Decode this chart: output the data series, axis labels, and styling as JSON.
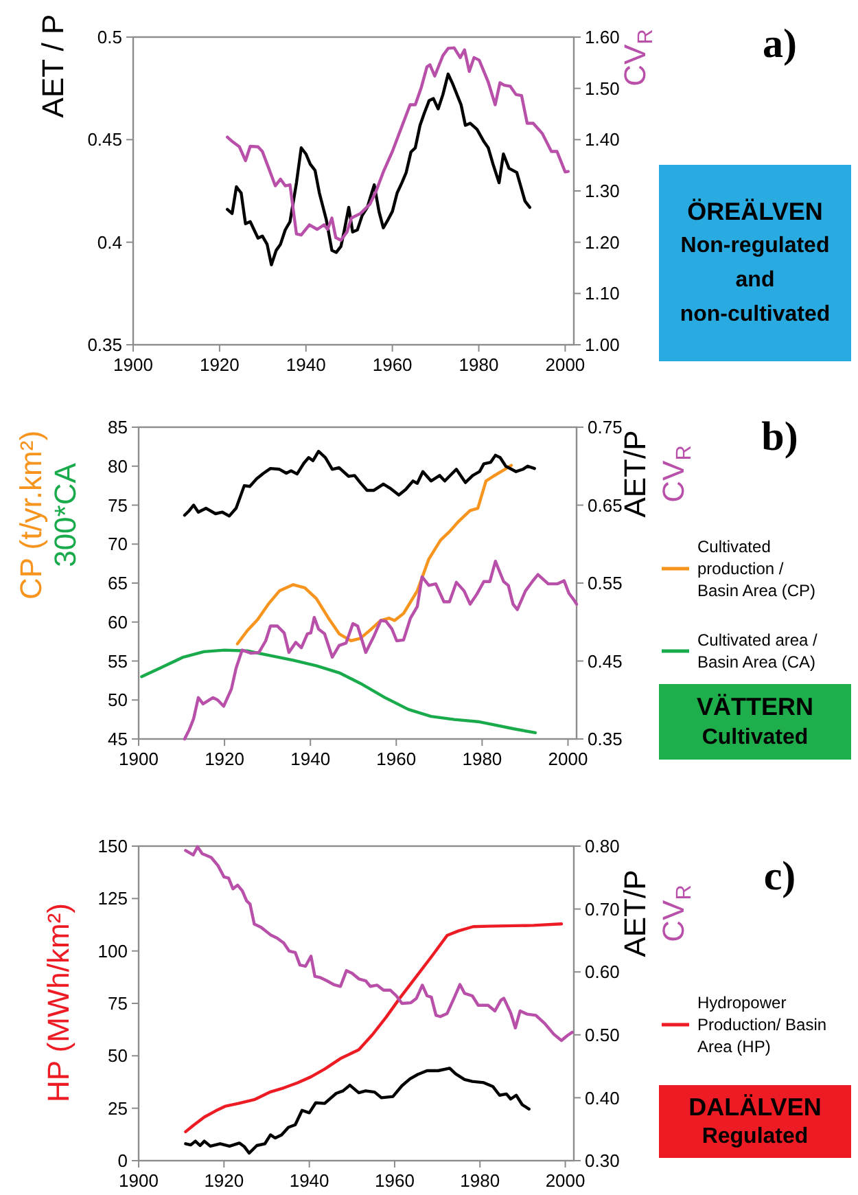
{
  "chart_data": [
    {
      "type": "line",
      "ylabel": "AET / P",
      "y2label": "CV$_{R}$",
      "xlim": [
        1900,
        2002
      ],
      "xticks": [
        1900,
        1920,
        1940,
        1960,
        1980,
        2000
      ],
      "ylim": [
        0.35,
        0.5
      ],
      "yticks": [
        0.35,
        0.4,
        0.45,
        0.5
      ],
      "y2lim": [
        1.0,
        1.6
      ],
      "y2ticks": [
        {
          "value": 1.0,
          "label": "1.00"
        },
        {
          "value": 1.1,
          "label": "1.10"
        },
        {
          "value": 1.2,
          "label": "1.20"
        },
        {
          "value": 1.3,
          "label": "1.30"
        },
        {
          "value": 1.4,
          "label": "1.40"
        },
        {
          "value": 1.5,
          "label": "1.50"
        },
        {
          "value": 1.6,
          "label": "1.60"
        }
      ],
      "series": [
        {
          "color": "#000000",
          "x": [
            1921.8,
            1922.9,
            1923.9,
            1925,
            1926,
            1927.1,
            1928.9,
            1929.9,
            1931,
            1932,
            1933.1,
            1934.1,
            1935.2,
            1936.3,
            1937.8,
            1938.9,
            1940,
            1941,
            1942.1,
            1943.1,
            1944.7,
            1946,
            1947,
            1948.1,
            1948.9,
            1949.9,
            1950.8,
            1951.9,
            1953,
            1954.2,
            1955.8,
            1956.9,
            1957.9,
            1959,
            1960,
            1961.1,
            1962.2,
            1963.2,
            1964.3,
            1965.3,
            1966.4,
            1967.4,
            1968.5,
            1969.5,
            1970.6,
            1971.7,
            1972.9,
            1974,
            1975.9,
            1976.9,
            1978,
            1979.6,
            1981.2,
            1982.2,
            1983.3,
            1984.7,
            1985.7,
            1987,
            1988.8,
            1990.7,
            1991.8
          ],
          "values": [
            0.416,
            0.414,
            0.427,
            0.424,
            0.409,
            0.41,
            0.402,
            0.403,
            0.399,
            0.389,
            0.396,
            0.399,
            0.406,
            0.41,
            0.429,
            0.446,
            0.443,
            0.438,
            0.435,
            0.424,
            0.411,
            0.396,
            0.395,
            0.398,
            0.406,
            0.417,
            0.405,
            0.406,
            0.413,
            0.417,
            0.428,
            0.415,
            0.407,
            0.411,
            0.415,
            0.424,
            0.429,
            0.434,
            0.444,
            0.446,
            0.457,
            0.463,
            0.469,
            0.47,
            0.465,
            0.472,
            0.482,
            0.477,
            0.467,
            0.457,
            0.458,
            0.455,
            0.449,
            0.446,
            0.438,
            0.429,
            0.443,
            0.436,
            0.434,
            0.42,
            0.417
          ]
        },
        {
          "color": "#b84fa8",
          "axis": "y2",
          "x": [
            1921.8,
            1923,
            1924.6,
            1926,
            1927.1,
            1928.9,
            1929.9,
            1931.3,
            1932.9,
            1934.1,
            1935.2,
            1936.3,
            1937.8,
            1938.9,
            1940.8,
            1942.6,
            1944.2,
            1945,
            1946,
            1946.9,
            1948.1,
            1949.5,
            1950.5,
            1952.6,
            1954.8,
            1956.3,
            1957.9,
            1960,
            1962.2,
            1964.1,
            1965.3,
            1966.7,
            1968,
            1968.7,
            1969.8,
            1971.7,
            1972.9,
            1974.3,
            1975.7,
            1976.7,
            1977.8,
            1978.9,
            1980.1,
            1982.2,
            1983.8,
            1984.9,
            1985.9,
            1987.3,
            1988.6,
            1989.9,
            1991.2,
            1992.6,
            1994.7,
            1996.8,
            1998.1,
            2000,
            2000.7
          ],
          "values": [
            1.405,
            1.396,
            1.386,
            1.359,
            1.387,
            1.386,
            1.377,
            1.346,
            1.31,
            1.323,
            1.31,
            1.312,
            1.216,
            1.214,
            1.234,
            1.225,
            1.234,
            1.225,
            1.247,
            1.209,
            1.204,
            1.22,
            1.247,
            1.256,
            1.274,
            1.301,
            1.337,
            1.377,
            1.426,
            1.468,
            1.468,
            1.502,
            1.542,
            1.546,
            1.524,
            1.564,
            1.578,
            1.579,
            1.56,
            1.575,
            1.533,
            1.56,
            1.555,
            1.512,
            1.468,
            1.511,
            1.506,
            1.504,
            1.488,
            1.486,
            1.432,
            1.432,
            1.412,
            1.377,
            1.377,
            1.337,
            1.338
          ]
        }
      ],
      "annotations": [
        "a)",
        "ÖREÄLVEN\nNon-regulated\nand\nnon-cultivated"
      ]
    },
    {
      "type": "line",
      "ylabel": "CP  (t/yr.km²)\n300*CA",
      "y2label": "AET/P\nCV$_{R}$",
      "xlim": [
        1900,
        2002
      ],
      "xticks": [
        1900,
        1920,
        1940,
        1960,
        1980,
        2000
      ],
      "ylim": [
        45,
        85
      ],
      "yticks": [
        45,
        50,
        55,
        60,
        65,
        70,
        75,
        80,
        85
      ],
      "y2lim": [
        0.35,
        0.75
      ],
      "y2ticks": [
        0.35,
        0.45,
        0.55,
        0.65,
        0.75
      ],
      "legend": "right",
      "series": [
        {
          "name": "Cultivated production / Basin Area (CP)",
          "color": "#f7941d",
          "x": [
            1923,
            1925.3,
            1927.7,
            1930.2,
            1932.8,
            1936,
            1938.7,
            1941.4,
            1944.1,
            1946.7,
            1949.4,
            1951.6,
            1954.2,
            1956.4,
            1958.3,
            1959.6,
            1961.7,
            1964.9,
            1967.6,
            1970.3,
            1972.4,
            1974.5,
            1977.2,
            1979,
            1980.9,
            1982.6,
            1984.7,
            1986.8
          ],
          "values": [
            57.2,
            58.9,
            60.3,
            62.3,
            64.0,
            64.8,
            64.4,
            63.0,
            60.6,
            58.5,
            57.6,
            57.9,
            59.1,
            60.2,
            60.5,
            60.2,
            61.1,
            64.0,
            68.1,
            70.5,
            71.6,
            72.9,
            74.3,
            74.6,
            78.1,
            78.7,
            79.4,
            80.1
          ]
        },
        {
          "name": "Cultivated area / Basin Area (CA)",
          "color": "#19ab4b",
          "x": [
            1900.7,
            1905,
            1910.4,
            1915.2,
            1920,
            1925.3,
            1930.7,
            1936,
            1941.4,
            1946.7,
            1952.1,
            1957.4,
            1962.8,
            1968.1,
            1973.5,
            1979.4,
            1982,
            1987.4,
            1992.4
          ],
          "values": [
            53.0,
            54.1,
            55.5,
            56.2,
            56.4,
            56.3,
            55.7,
            55.1,
            54.4,
            53.5,
            52.0,
            50.3,
            48.8,
            47.9,
            47.5,
            47.2,
            46.9,
            46.3,
            45.8
          ]
        },
        {
          "color": "#000000",
          "axis": "y2",
          "x": [
            1910.7,
            1911.8,
            1912.8,
            1913.9,
            1915.7,
            1917.9,
            1919.5,
            1921.1,
            1922.7,
            1924.6,
            1925.9,
            1927.5,
            1929.1,
            1930.7,
            1932.8,
            1934.4,
            1935.5,
            1936.9,
            1938.5,
            1939.6,
            1940.6,
            1941.9,
            1943.5,
            1945.1,
            1946.7,
            1948.9,
            1950.3,
            1951.6,
            1953.2,
            1954.8,
            1957,
            1958.5,
            1960.6,
            1962.2,
            1963.9,
            1964.9,
            1966.2,
            1968.1,
            1970.1,
            1971.3,
            1974,
            1976.1,
            1977.8,
            1979.4,
            1980.4,
            1982,
            1983.1,
            1984.2,
            1985.5,
            1987.9,
            1989.5,
            1990.6,
            1992.2
          ],
          "values": [
            0.637,
            0.643,
            0.65,
            0.641,
            0.646,
            0.639,
            0.641,
            0.636,
            0.646,
            0.675,
            0.674,
            0.684,
            0.691,
            0.697,
            0.696,
            0.691,
            0.694,
            0.69,
            0.704,
            0.711,
            0.707,
            0.719,
            0.711,
            0.696,
            0.698,
            0.687,
            0.688,
            0.679,
            0.669,
            0.669,
            0.677,
            0.672,
            0.663,
            0.67,
            0.681,
            0.678,
            0.693,
            0.681,
            0.688,
            0.681,
            0.696,
            0.679,
            0.688,
            0.693,
            0.703,
            0.705,
            0.714,
            0.711,
            0.7,
            0.693,
            0.696,
            0.7,
            0.697
          ]
        },
        {
          "color": "#b84fa8",
          "axis": "y2",
          "x": [
            1910.7,
            1911.8,
            1912.8,
            1913.9,
            1915,
            1917.3,
            1918.4,
            1919.8,
            1921.6,
            1922.7,
            1924.1,
            1926.2,
            1928,
            1929.6,
            1930.7,
            1932.3,
            1933.9,
            1935,
            1936.6,
            1937.9,
            1939.3,
            1940.1,
            1940.9,
            1941.9,
            1943.3,
            1945.1,
            1946.7,
            1948.3,
            1949.9,
            1951,
            1952.9,
            1954.8,
            1956.4,
            1957.6,
            1959,
            1960.1,
            1961.7,
            1963.3,
            1964.9,
            1966,
            1967.6,
            1969.2,
            1971.1,
            1972.4,
            1974,
            1975.8,
            1977.2,
            1978.8,
            1980.4,
            1981.8,
            1983.1,
            1985,
            1986.1,
            1987.2,
            1988.2,
            1990.1,
            1991.7,
            1993,
            1995.4,
            1997.5,
            1999.1,
            2000.2,
            2001.3,
            2002
          ],
          "values": [
            0.35,
            0.362,
            0.376,
            0.403,
            0.395,
            0.403,
            0.4,
            0.392,
            0.414,
            0.441,
            0.464,
            0.46,
            0.461,
            0.476,
            0.495,
            0.495,
            0.486,
            0.461,
            0.474,
            0.467,
            0.485,
            0.486,
            0.506,
            0.491,
            0.485,
            0.455,
            0.47,
            0.473,
            0.498,
            0.495,
            0.461,
            0.482,
            0.502,
            0.501,
            0.491,
            0.476,
            0.477,
            0.505,
            0.52,
            0.558,
            0.547,
            0.549,
            0.526,
            0.526,
            0.551,
            0.54,
            0.523,
            0.536,
            0.552,
            0.552,
            0.578,
            0.552,
            0.547,
            0.523,
            0.516,
            0.54,
            0.552,
            0.561,
            0.549,
            0.549,
            0.553,
            0.537,
            0.529,
            0.523
          ]
        }
      ],
      "annotations": [
        "b)",
        "VÄTTERN\nCultivated"
      ]
    },
    {
      "type": "line",
      "ylabel": "HP (MWh/km²)",
      "y2label": "AET/P\nCV$_{R}$",
      "xlim": [
        1900,
        2002
      ],
      "xticks": [
        1900,
        1920,
        1940,
        1960,
        1980,
        2000
      ],
      "ylim": [
        0,
        150
      ],
      "yticks": [
        0,
        25,
        50,
        75,
        100,
        125,
        150
      ],
      "y2lim": [
        0.3,
        0.8
      ],
      "y2ticks": [
        {
          "value": 0.3,
          "label": "0.30"
        },
        {
          "value": 0.4,
          "label": "0.40"
        },
        {
          "value": 0.5,
          "label": "0.50"
        },
        {
          "value": 0.6,
          "label": "0.60"
        },
        {
          "value": 0.7,
          "label": "0.70"
        },
        {
          "value": 0.8,
          "label": "0.80"
        }
      ],
      "legend": "right",
      "series": [
        {
          "name": "Hydropower Production/ Basin Area (HP)",
          "color": "#ed1c24",
          "x": [
            1911,
            1912.8,
            1915.4,
            1918.1,
            1920.4,
            1923.4,
            1927.1,
            1930.9,
            1934,
            1937.2,
            1940.4,
            1943.6,
            1947.3,
            1951.6,
            1954.8,
            1958,
            1961.2,
            1964.9,
            1968.6,
            1972.3,
            1975,
            1978.4,
            1981.9,
            1992.6,
            1999.1
          ],
          "values": [
            13.8,
            16.8,
            20.8,
            23.8,
            26.0,
            27.3,
            29.1,
            32.8,
            34.7,
            37.1,
            40.0,
            43.7,
            48.7,
            52.9,
            60.1,
            68.4,
            77.5,
            87.3,
            97.2,
            107.4,
            109.6,
            111.6,
            111.8,
            112.2,
            112.9
          ]
        },
        {
          "color": "#000000",
          "axis": "y2",
          "x": [
            1911,
            1912.2,
            1913.3,
            1914.4,
            1915.4,
            1916.8,
            1919.1,
            1921.3,
            1923.6,
            1924.8,
            1925.9,
            1927.7,
            1929.6,
            1930.9,
            1932,
            1933.5,
            1935.1,
            1936.7,
            1938.3,
            1940,
            1941.5,
            1943.6,
            1946.3,
            1947.9,
            1949.5,
            1951.6,
            1953.2,
            1955.3,
            1956.9,
            1959.6,
            1961.7,
            1963.6,
            1965.4,
            1967.6,
            1970.2,
            1972.9,
            1974.3,
            1976.4,
            1978.2,
            1980.9,
            1983,
            1984.6,
            1986.2,
            1987.2,
            1988.5,
            1989.9,
            1991.5
          ],
          "values": [
            0.327,
            0.325,
            0.331,
            0.324,
            0.331,
            0.323,
            0.327,
            0.323,
            0.328,
            0.322,
            0.312,
            0.324,
            0.327,
            0.341,
            0.336,
            0.341,
            0.353,
            0.357,
            0.38,
            0.376,
            0.392,
            0.391,
            0.407,
            0.411,
            0.42,
            0.408,
            0.411,
            0.409,
            0.4,
            0.402,
            0.419,
            0.43,
            0.437,
            0.443,
            0.443,
            0.447,
            0.438,
            0.429,
            0.426,
            0.424,
            0.418,
            0.404,
            0.406,
            0.398,
            0.404,
            0.389,
            0.382
          ]
        },
        {
          "color": "#b84fa8",
          "axis": "y2",
          "x": [
            1911,
            1912.8,
            1913.8,
            1914.9,
            1917,
            1918.6,
            1920,
            1921.1,
            1922.1,
            1923.2,
            1924.3,
            1925.3,
            1926.1,
            1927.1,
            1928.7,
            1930.9,
            1932.4,
            1934,
            1935.3,
            1936.7,
            1937.8,
            1939.1,
            1940.4,
            1941.3,
            1942.6,
            1944.1,
            1945.7,
            1947.3,
            1948.7,
            1950,
            1951.6,
            1953.2,
            1954.3,
            1955.9,
            1957.4,
            1959,
            1960.4,
            1961.7,
            1963.8,
            1965.1,
            1966.5,
            1967.6,
            1968.6,
            1969.7,
            1970.7,
            1972.3,
            1973.9,
            1975.3,
            1976.4,
            1978.2,
            1979.6,
            1981.9,
            1983.5,
            1984.9,
            1985.6,
            1987.2,
            1988.3,
            1989.4,
            1991,
            1993.1,
            1995.2,
            1997.3,
            1999.1,
            2000.5,
            2001.6
          ],
          "values": [
            0.793,
            0.786,
            0.799,
            0.788,
            0.782,
            0.769,
            0.751,
            0.749,
            0.732,
            0.738,
            0.729,
            0.713,
            0.708,
            0.676,
            0.671,
            0.659,
            0.654,
            0.646,
            0.633,
            0.631,
            0.611,
            0.609,
            0.625,
            0.593,
            0.591,
            0.586,
            0.58,
            0.577,
            0.602,
            0.598,
            0.589,
            0.586,
            0.577,
            0.579,
            0.571,
            0.571,
            0.562,
            0.55,
            0.551,
            0.558,
            0.579,
            0.562,
            0.56,
            0.531,
            0.529,
            0.534,
            0.558,
            0.58,
            0.566,
            0.562,
            0.547,
            0.547,
            0.538,
            0.555,
            0.558,
            0.535,
            0.511,
            0.538,
            0.533,
            0.531,
            0.518,
            0.501,
            0.491,
            0.499,
            0.504
          ]
        }
      ],
      "annotations": [
        "c)",
        "DALÄLVEN\nRegulated"
      ]
    }
  ]
}
